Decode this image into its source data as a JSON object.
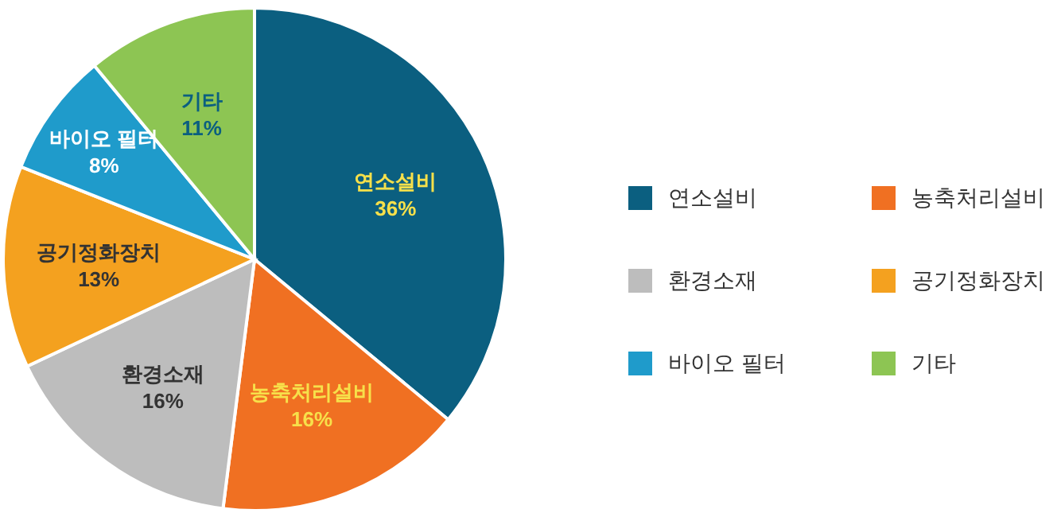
{
  "chart_data": {
    "type": "pie",
    "categories": [
      "연소설비",
      "농축처리설비",
      "환경소재",
      "공기정화장치",
      "바이오 필터",
      "기타"
    ],
    "values": [
      36,
      16,
      16,
      13,
      8,
      11
    ],
    "colors": [
      "#0b5f80",
      "#f07022",
      "#bdbdbd",
      "#f4a11f",
      "#1f9bcb",
      "#8dc553"
    ],
    "value_labels": [
      "36%",
      "16%",
      "16%",
      "13%",
      "8%",
      "11%"
    ],
    "legend": "right"
  }
}
